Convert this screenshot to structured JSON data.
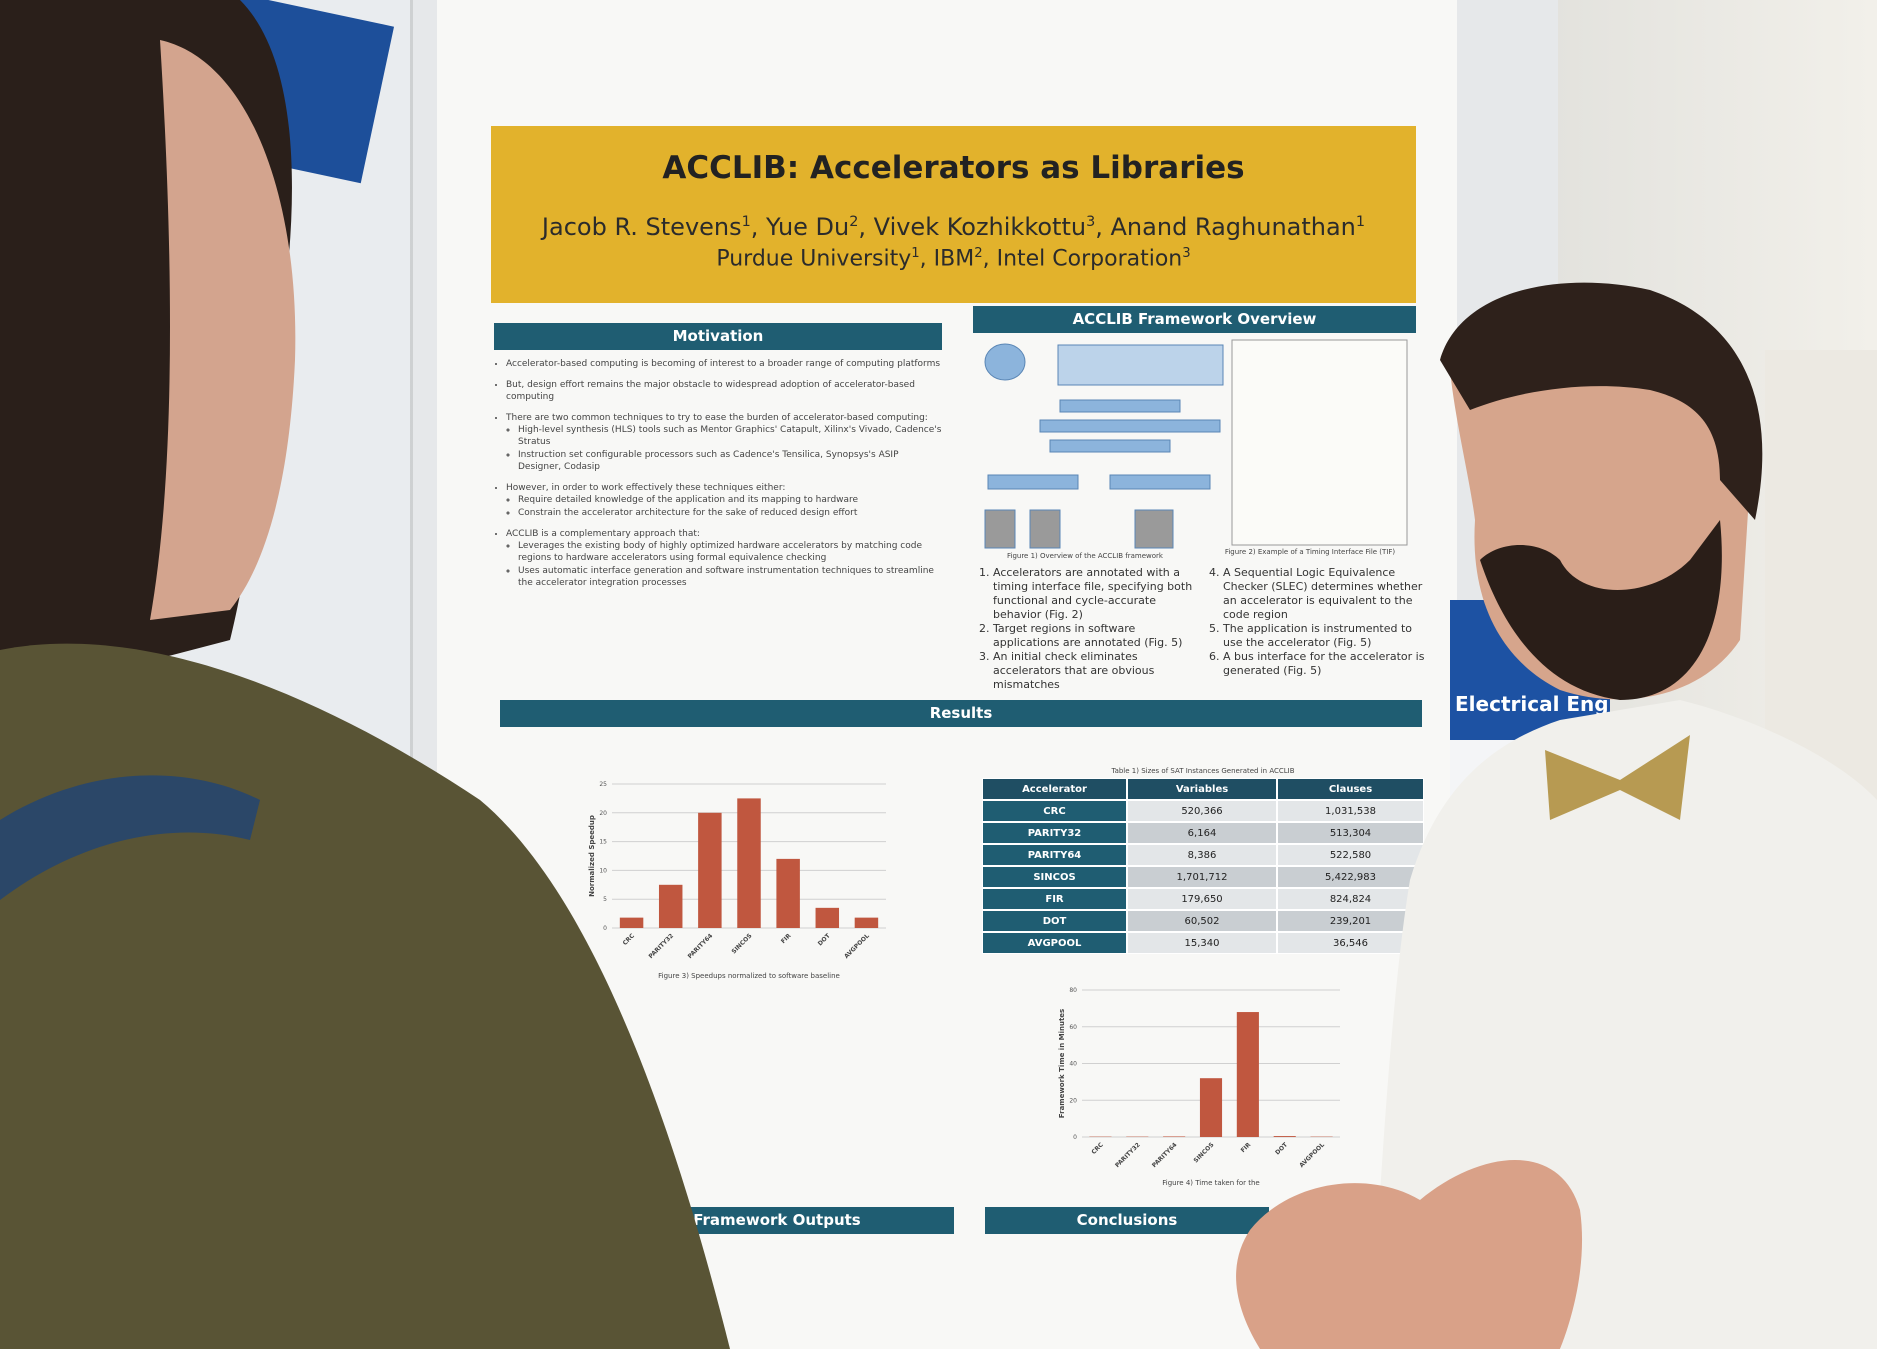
{
  "poster": {
    "title": "ACCLIB: Accelerators as Libraries",
    "authors": [
      {
        "name": "Jacob R. Stevens",
        "sup": "1",
        "separator": ", "
      },
      {
        "name": "Yue Du",
        "sup": "2",
        "separator": ", "
      },
      {
        "name": "Vivek Kozhikkottu",
        "sup": "3",
        "separator": ", "
      },
      {
        "name": "Anand Raghunathan",
        "sup": "1"
      }
    ],
    "affiliations": [
      {
        "name": "Purdue University",
        "sup": "1",
        "separator": ", "
      },
      {
        "name": "IBM",
        "sup": "2",
        "separator": ", "
      },
      {
        "name": "Intel Corporation",
        "sup": "3"
      }
    ],
    "motivation": {
      "heading": "Motivation",
      "bullets": [
        {
          "text": "Accelerator-based computing is becoming of interest to a broader range of computing platforms",
          "subs": []
        },
        {
          "text": "But, design effort remains the major obstacle to widespread adoption of accelerator-based computing",
          "subs": []
        },
        {
          "text": "There are two common techniques to try to ease the burden of accelerator-based computing:",
          "subs": [
            "High-level synthesis (HLS) tools such as Mentor Graphics' Catapult,  Xilinx's Vivado, Cadence's Stratus",
            "Instruction set configurable processors such as Cadence's Tensilica, Synopsys's ASIP Designer,  Codasip"
          ]
        },
        {
          "text": "However, in order to work effectively these techniques either:",
          "subs": [
            "Require detailed knowledge of the application and its mapping to hardware",
            "Constrain the accelerator architecture for the sake of reduced design effort"
          ]
        },
        {
          "text": "ACCLIB is a complementary approach that:",
          "subs": [
            "Leverages the existing body of highly optimized hardware accelerators by matching code regions to hardware accelerators using formal equivalence checking",
            "Uses automatic interface generation and software instrumentation techniques to streamline the accelerator integration processes"
          ]
        }
      ]
    },
    "framework": {
      "heading": "ACCLIB Framework Overview",
      "figure1_caption": "Figure 1) Overview of the ACCLIB framework",
      "figure2_caption": "Figure 2) Example of a Timing Interface File (TIF)",
      "steps": [
        "Accelerators are annotated with a timing interface file, specifying both functional and cycle-accurate behavior (Fig. 2)",
        "Target regions in software applications are annotated (Fig. 5)",
        "An initial check eliminates accelerators that are obvious mismatches",
        "A Sequential Logic Equivalence Checker (SLEC) determines whether an accelerator is equivalent to the code region",
        "The application is instrumented to use the accelerator (Fig. 5)",
        "A bus interface for the accelerator is generated (Fig. 5)"
      ]
    },
    "results": {
      "heading": "Results",
      "speedup_chart": {
        "type": "bar",
        "y_label": "Normalized Speedup",
        "caption": "Figure 3) Speedups normalized to software baseline",
        "categories": [
          "CRC",
          "PARITY32",
          "PARITY64",
          "SINCOS",
          "FIR",
          "DOT",
          "AVGPOOL"
        ],
        "values": [
          1.8,
          7.5,
          20,
          22.5,
          12,
          3.5,
          1.8
        ],
        "color": "#c0573f",
        "ylim": [
          0,
          25
        ],
        "yticks": [
          0,
          5,
          10,
          15,
          20,
          25
        ],
        "grid": true
      },
      "table": {
        "caption": "Table 1) Sizes of SAT Instances Generated in ACCLIB",
        "header": [
          "Accelerator",
          "Variables",
          "Clauses"
        ],
        "rows": [
          [
            "CRC",
            "520,366",
            "1,031,538"
          ],
          [
            "PARITY32",
            "6,164",
            "513,304"
          ],
          [
            "PARITY64",
            "8,386",
            "522,580"
          ],
          [
            "SINCOS",
            "1,701,712",
            "5,422,983"
          ],
          [
            "FIR",
            "179,650",
            "824,824"
          ],
          [
            "DOT",
            "60,502",
            "239,201"
          ],
          [
            "AVGPOOL",
            "15,340",
            "36,546"
          ]
        ]
      },
      "time_chart": {
        "type": "bar",
        "y_label": "Framework Time in Minutes",
        "caption": "Figure 4) Time taken for the",
        "categories": [
          "CRC",
          "PARITY32",
          "PARITY64",
          "SINCOS",
          "FIR",
          "DOT",
          "AVGPOOL"
        ],
        "values": [
          0.2,
          0.2,
          0.3,
          32,
          68,
          0.5,
          0.2
        ],
        "color": "#c0573f",
        "ylim": [
          0,
          80
        ],
        "yticks": [
          0,
          20,
          40,
          60,
          80
        ],
        "grid": true
      }
    },
    "outputs_heading": "Framework Outputs",
    "conclusions_heading": "Conclusions"
  },
  "side_poster": {
    "label": "Electrical Eng"
  }
}
